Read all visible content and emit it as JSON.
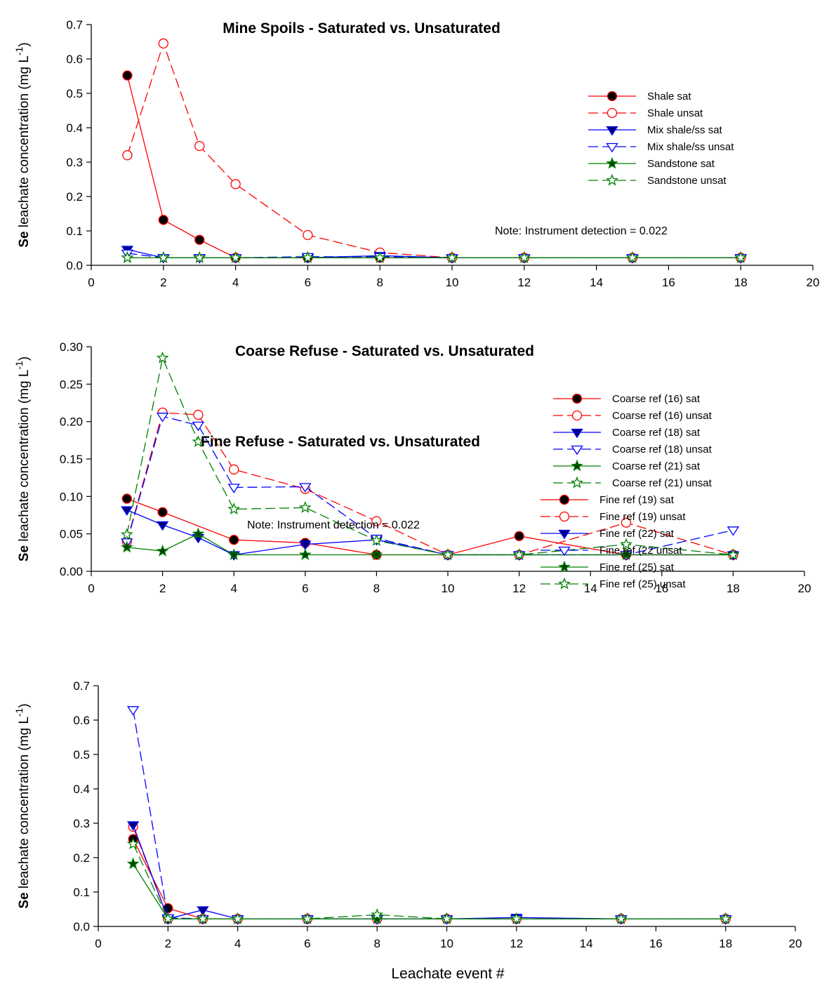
{
  "chart_data": [
    {
      "type": "line",
      "title": "Mine Spoils  -  Saturated vs. Unsaturated",
      "ylabel": [
        "Se",
        " leachate concentration (mg L",
        "-1",
        ")"
      ],
      "note": "Note: Instrument detection = 0.022",
      "x": [
        1,
        2,
        3,
        4,
        6,
        8,
        10,
        12,
        15,
        18
      ],
      "xlim": [
        0,
        20
      ],
      "xticks": [
        0,
        2,
        4,
        6,
        8,
        10,
        12,
        14,
        16,
        18,
        20
      ],
      "ylim": [
        0,
        0.7
      ],
      "yticks": [
        {
          "value": 0,
          "label": "0.0"
        },
        0.1,
        0.2,
        0.3,
        0.4,
        0.5,
        0.6,
        0.7
      ],
      "series": [
        {
          "name": "Shale sat",
          "color": "#ff0000",
          "marker": "circle",
          "filled": true,
          "marker_fill": "#000000",
          "dashed": false,
          "values": [
            0.552,
            0.132,
            0.074,
            0.022,
            0.022,
            0.022,
            0.022,
            0.022,
            0.022,
            0.022
          ]
        },
        {
          "name": "Shale unsat",
          "color": "#ff0000",
          "marker": "circle",
          "filled": false,
          "marker_fill": "#ffffff",
          "dashed": true,
          "values": [
            0.32,
            0.645,
            0.347,
            0.236,
            0.088,
            0.037,
            0.022,
            0.022,
            0.022,
            0.022
          ]
        },
        {
          "name": "Mix shale/ss sat",
          "color": "#0000ff",
          "marker": "triangle",
          "filled": true,
          "marker_fill": "#000080",
          "dashed": false,
          "values": [
            0.046,
            0.022,
            0.022,
            0.022,
            0.022,
            0.028,
            0.022,
            0.022,
            0.022,
            0.022
          ]
        },
        {
          "name": "Mix shale/ss unsat",
          "color": "#0000ff",
          "marker": "triangle",
          "filled": false,
          "marker_fill": "#ffffff",
          "dashed": true,
          "values": [
            0.035,
            0.022,
            0.022,
            0.022,
            0.025,
            0.025,
            0.022,
            0.022,
            0.022,
            0.022
          ]
        },
        {
          "name": "Sandstone sat",
          "color": "#008000",
          "marker": "star",
          "filled": true,
          "marker_fill": "#004000",
          "dashed": false,
          "values": [
            0.022,
            0.022,
            0.022,
            0.022,
            0.022,
            0.022,
            0.022,
            0.022,
            0.022,
            0.022
          ]
        },
        {
          "name": "Sandstone unsat",
          "color": "#008000",
          "marker": "star",
          "filled": false,
          "marker_fill": "#ffffff",
          "dashed": true,
          "values": [
            0.022,
            0.022,
            0.022,
            0.022,
            0.022,
            0.022,
            0.022,
            0.022,
            0.022,
            0.022
          ]
        }
      ]
    },
    {
      "type": "line",
      "title": "Coarse Refuse  -  Saturated vs. Unsaturated",
      "ylabel": [
        "Se",
        " leachate concentration (mg L",
        "-1",
        ")"
      ],
      "x": [
        1,
        2,
        3,
        4,
        6,
        8,
        10,
        12,
        15,
        18
      ],
      "xlim": [
        0,
        20
      ],
      "xticks": [
        0,
        2,
        4,
        6,
        8,
        10,
        12,
        14,
        16,
        18,
        20
      ],
      "ylim": [
        0,
        0.3
      ],
      "yticks": [
        {
          "value": 0,
          "label": "0.00"
        },
        {
          "value": 0.05,
          "label": "0.05"
        },
        {
          "value": 0.1,
          "label": "0.10"
        },
        {
          "value": 0.15,
          "label": "0.15"
        },
        {
          "value": 0.2,
          "label": "0.20"
        },
        {
          "value": 0.25,
          "label": "0.25"
        },
        {
          "value": 0.3,
          "label": "0.30"
        }
      ],
      "series": [
        {
          "name": "Coarse ref (16) sat",
          "color": "#ff0000",
          "marker": "circle",
          "filled": true,
          "marker_fill": "#000000",
          "dashed": false,
          "x": [
            1,
            2,
            4,
            6,
            8,
            10,
            12,
            15,
            18
          ],
          "values": [
            0.097,
            0.079,
            0.042,
            0.038,
            0.022,
            0.022,
            0.047,
            0.022,
            0.022
          ]
        },
        {
          "name": "Coarse ref (16) unsat",
          "color": "#ff0000",
          "marker": "circle",
          "filled": false,
          "marker_fill": "#ffffff",
          "dashed": true,
          "values": [
            0.04,
            0.212,
            0.209,
            0.136,
            0.11,
            0.067,
            0.022,
            0.022,
            0.065,
            0.022
          ]
        },
        {
          "name": "Coarse ref (18) sat",
          "color": "#0000ff",
          "marker": "triangle",
          "filled": true,
          "marker_fill": "#000080",
          "dashed": false,
          "values": [
            0.082,
            0.062,
            0.045,
            0.022,
            0.036,
            0.042,
            0.022,
            0.022,
            0.022,
            0.022
          ]
        },
        {
          "name": "Coarse ref (18) unsat",
          "color": "#0000ff",
          "marker": "triangle",
          "filled": false,
          "marker_fill": "#ffffff",
          "dashed": true,
          "values": [
            0.039,
            0.207,
            0.195,
            0.112,
            0.113,
            0.044,
            0.022,
            0.022,
            0.022,
            0.055
          ]
        },
        {
          "name": "Coarse ref (21) sat",
          "color": "#008000",
          "marker": "star",
          "filled": true,
          "marker_fill": "#004000",
          "dashed": false,
          "values": [
            0.032,
            0.027,
            0.05,
            0.022,
            0.022,
            0.022,
            0.022,
            0.022,
            0.022,
            0.022
          ]
        },
        {
          "name": "Coarse ref (21) unsat",
          "color": "#008000",
          "marker": "star",
          "filled": false,
          "marker_fill": "#ffffff",
          "dashed": true,
          "values": [
            0.049,
            0.285,
            0.173,
            0.083,
            0.085,
            0.041,
            0.022,
            0.022,
            0.036,
            0.022
          ]
        }
      ]
    },
    {
      "type": "line",
      "title": "Fine Refuse  -  Saturated vs. Unsaturated",
      "ylabel": [
        "Se",
        " leachate concentration (mg L",
        "-1",
        ")"
      ],
      "xlabel": "Leachate event #",
      "note": "Note: Instrument detection = 0.022",
      "x": [
        1,
        2,
        3,
        4,
        6,
        8,
        10,
        12,
        15,
        18
      ],
      "xlim": [
        0,
        20
      ],
      "xticks": [
        0,
        2,
        4,
        6,
        8,
        10,
        12,
        14,
        16,
        18,
        20
      ],
      "ylim": [
        0,
        0.7
      ],
      "yticks": [
        {
          "value": 0,
          "label": "0.0"
        },
        0.1,
        0.2,
        0.3,
        0.4,
        0.5,
        0.6,
        0.7
      ],
      "series": [
        {
          "name": "Fine ref (19) sat",
          "color": "#ff0000",
          "marker": "circle",
          "filled": true,
          "marker_fill": "#000000",
          "dashed": false,
          "values": [
            0.254,
            0.053,
            0.022,
            0.022,
            0.022,
            0.022,
            0.022,
            0.022,
            0.022,
            0.022
          ]
        },
        {
          "name": "Fine ref (19) unsat",
          "color": "#ff0000",
          "marker": "circle",
          "filled": false,
          "marker_fill": "#ffffff",
          "dashed": true,
          "values": [
            0.29,
            0.022,
            0.022,
            0.022,
            0.022,
            0.022,
            0.022,
            0.022,
            0.022,
            0.022
          ]
        },
        {
          "name": "Fine ref (22) sat",
          "color": "#0000ff",
          "marker": "triangle",
          "filled": true,
          "marker_fill": "#000080",
          "dashed": false,
          "values": [
            0.295,
            0.022,
            0.048,
            0.022,
            0.022,
            0.022,
            0.022,
            0.026,
            0.022,
            0.022
          ]
        },
        {
          "name": "Fine ref (22 unsat",
          "color": "#0000ff",
          "marker": "triangle",
          "filled": false,
          "marker_fill": "#ffffff",
          "dashed": true,
          "values": [
            0.63,
            0.025,
            0.022,
            0.022,
            0.022,
            0.022,
            0.022,
            0.022,
            0.022,
            0.022
          ]
        },
        {
          "name": "Fine ref (25) sat",
          "color": "#008000",
          "marker": "star",
          "filled": true,
          "marker_fill": "#004000",
          "dashed": false,
          "values": [
            0.182,
            0.022,
            0.022,
            0.022,
            0.022,
            0.022,
            0.022,
            0.022,
            0.022,
            0.022
          ]
        },
        {
          "name": "Fine ref (25) unsat",
          "color": "#008000",
          "marker": "star",
          "filled": false,
          "marker_fill": "#ffffff",
          "dashed": true,
          "values": [
            0.24,
            0.022,
            0.022,
            0.022,
            0.022,
            0.034,
            0.022,
            0.022,
            0.022,
            0.022
          ]
        }
      ]
    }
  ]
}
